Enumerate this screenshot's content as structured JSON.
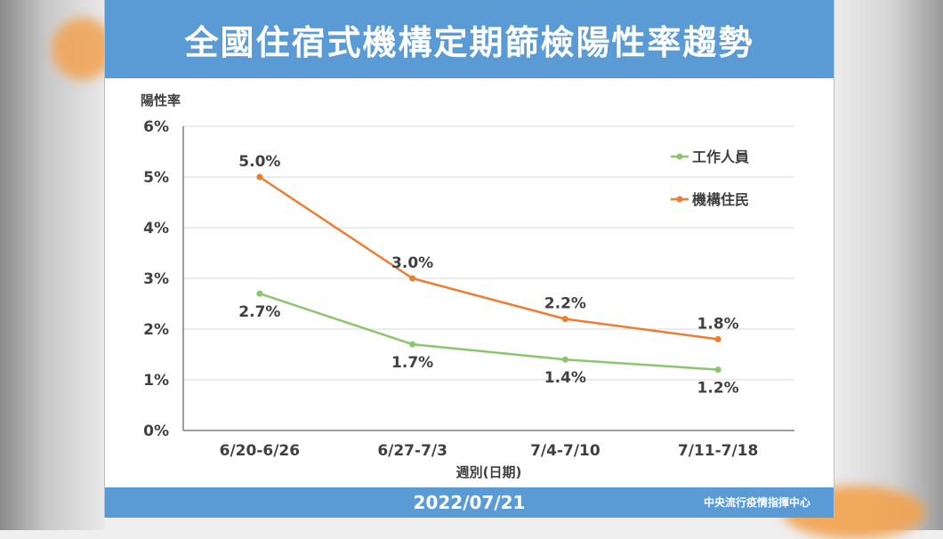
{
  "title": "全國住宿式機構定期篩檢陽性率趨勢",
  "footer": {
    "date": "2022/07/21",
    "source": "中央流行疫情指揮中心"
  },
  "colors": {
    "header": "#5b9bd5",
    "staff": "#8dc56f",
    "residents": "#ed7d31",
    "grid": "#d9d9d9"
  },
  "chart_data": {
    "type": "line",
    "ylabel": "陽性率",
    "xlabel": "週別(日期)",
    "ylim": [
      0,
      6
    ],
    "yticks": [
      "0%",
      "1%",
      "2%",
      "3%",
      "4%",
      "5%",
      "6%"
    ],
    "categories": [
      "6/20-6/26",
      "6/27-7/3",
      "7/4-7/10",
      "7/11-7/18"
    ],
    "grid": true,
    "legend_position": "top-right",
    "series": [
      {
        "name": "工作人員",
        "values": [
          2.7,
          1.7,
          1.4,
          1.2
        ],
        "labels": [
          "2.7%",
          "1.7%",
          "1.4%",
          "1.2%"
        ],
        "label_position": "below"
      },
      {
        "name": "機構住民",
        "values": [
          5.0,
          3.0,
          2.2,
          1.8
        ],
        "labels": [
          "5.0%",
          "3.0%",
          "2.2%",
          "1.8%"
        ],
        "label_position": "above"
      }
    ]
  }
}
